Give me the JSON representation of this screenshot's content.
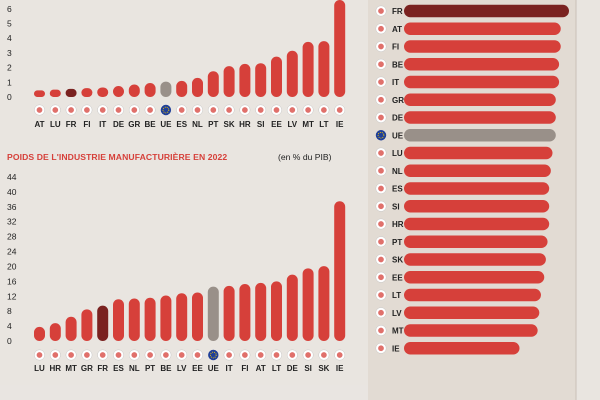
{
  "colors": {
    "background": "#e9e5e0",
    "bar": "#d6403a",
    "highlight": "#7a2220",
    "eu": "#999089",
    "right_panel": "#e2dbd3",
    "divider": "#c9c0b7",
    "flag_blue": "#1f3f99",
    "flag_red": "#d6403a"
  },
  "chart_data": [
    {
      "type": "bar",
      "id": "top-left-chart",
      "title": "",
      "ylabel": "",
      "ylim": [
        0,
        6.6
      ],
      "yticks": [
        "0",
        "1",
        "2",
        "3",
        "4",
        "5",
        "6"
      ],
      "categories": [
        "AT",
        "LU",
        "FR",
        "FI",
        "IT",
        "DE",
        "GR",
        "BE",
        "UE",
        "ES",
        "NL",
        "PT",
        "SK",
        "HR",
        "SI",
        "EE",
        "LV",
        "MT",
        "LT",
        "IE"
      ],
      "values": [
        0.45,
        0.5,
        0.55,
        0.6,
        0.65,
        0.75,
        0.85,
        0.95,
        1.05,
        1.1,
        1.3,
        1.75,
        2.1,
        2.25,
        2.3,
        2.75,
        3.15,
        3.75,
        3.8,
        6.6
      ],
      "highlight": "FR",
      "average": "UE"
    },
    {
      "type": "bar",
      "id": "bottom-left-chart",
      "title": "POIDS DE L'INDUSTRIE MANUFACTURIÈRE EN 2022",
      "unit": "(en % du PIB)",
      "ylim": [
        0,
        44
      ],
      "yticks": [
        "0",
        "4",
        "8",
        "12",
        "16",
        "20",
        "24",
        "28",
        "32",
        "36",
        "40",
        "44"
      ],
      "categories": [
        "LU",
        "HR",
        "MT",
        "GR",
        "FR",
        "ES",
        "NL",
        "PT",
        "BE",
        "LV",
        "EE",
        "UE",
        "IT",
        "FI",
        "AT",
        "LT",
        "DE",
        "SI",
        "SK",
        "IE"
      ],
      "values": [
        3.8,
        4.8,
        6.5,
        8.5,
        9.5,
        11.2,
        11.4,
        11.6,
        12.2,
        12.8,
        13,
        14.6,
        14.8,
        15.3,
        15.6,
        16,
        17.8,
        19.5,
        20.1,
        37.5
      ],
      "highlight": "FR",
      "average": "UE"
    },
    {
      "type": "bar",
      "id": "right-chart",
      "orientation": "horizontal",
      "title": "",
      "categories": [
        "FR",
        "AT",
        "FI",
        "BE",
        "IT",
        "GR",
        "DE",
        "UE",
        "LU",
        "NL",
        "ES",
        "SI",
        "HR",
        "PT",
        "SK",
        "EE",
        "LT",
        "LV",
        "MT",
        "IE"
      ],
      "values": [
        100,
        95,
        95,
        94,
        94,
        92,
        92,
        92,
        90,
        89,
        88,
        88,
        88,
        87,
        86,
        85,
        83,
        82,
        81,
        70
      ],
      "highlight": "FR",
      "average": "UE"
    }
  ]
}
